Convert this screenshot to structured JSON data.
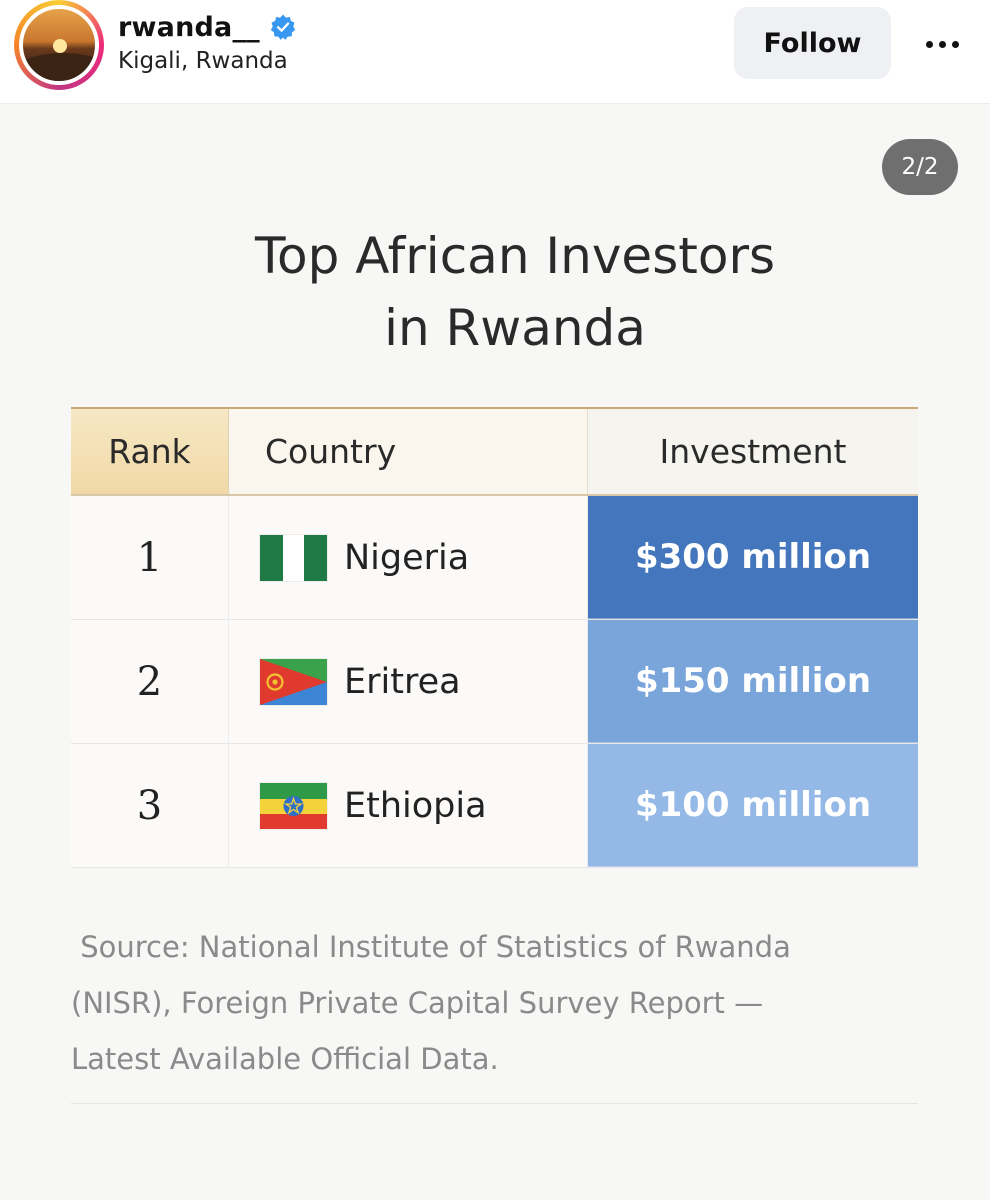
{
  "header": {
    "username": "rwanda__",
    "location": "Kigali, Rwanda",
    "follow_label": "Follow"
  },
  "post": {
    "page_counter": "2/2",
    "title_line1": "Top African Investors",
    "title_line2": "in Rwanda",
    "table": {
      "headers": [
        "Rank",
        "Country",
        "Investment"
      ],
      "rows": [
        {
          "rank": "1",
          "country": "Nigeria",
          "flag": "nigeria-flag",
          "investment": "$300 million",
          "color": "#4476bd"
        },
        {
          "rank": "2",
          "country": "Eritrea",
          "flag": "eritrea-flag",
          "investment": "$150 million",
          "color": "#7aa5da"
        },
        {
          "rank": "3",
          "country": "Ethiopia",
          "flag": "ethiopia-flag",
          "investment": "$100 million",
          "color": "#94b9e6"
        }
      ]
    },
    "source_line1": " Source: National Institute of Statistics of Rwanda",
    "source_line2": "(NISR), Foreign Private Capital Survey Report —",
    "source_line3": "Latest Available Official Data."
  }
}
